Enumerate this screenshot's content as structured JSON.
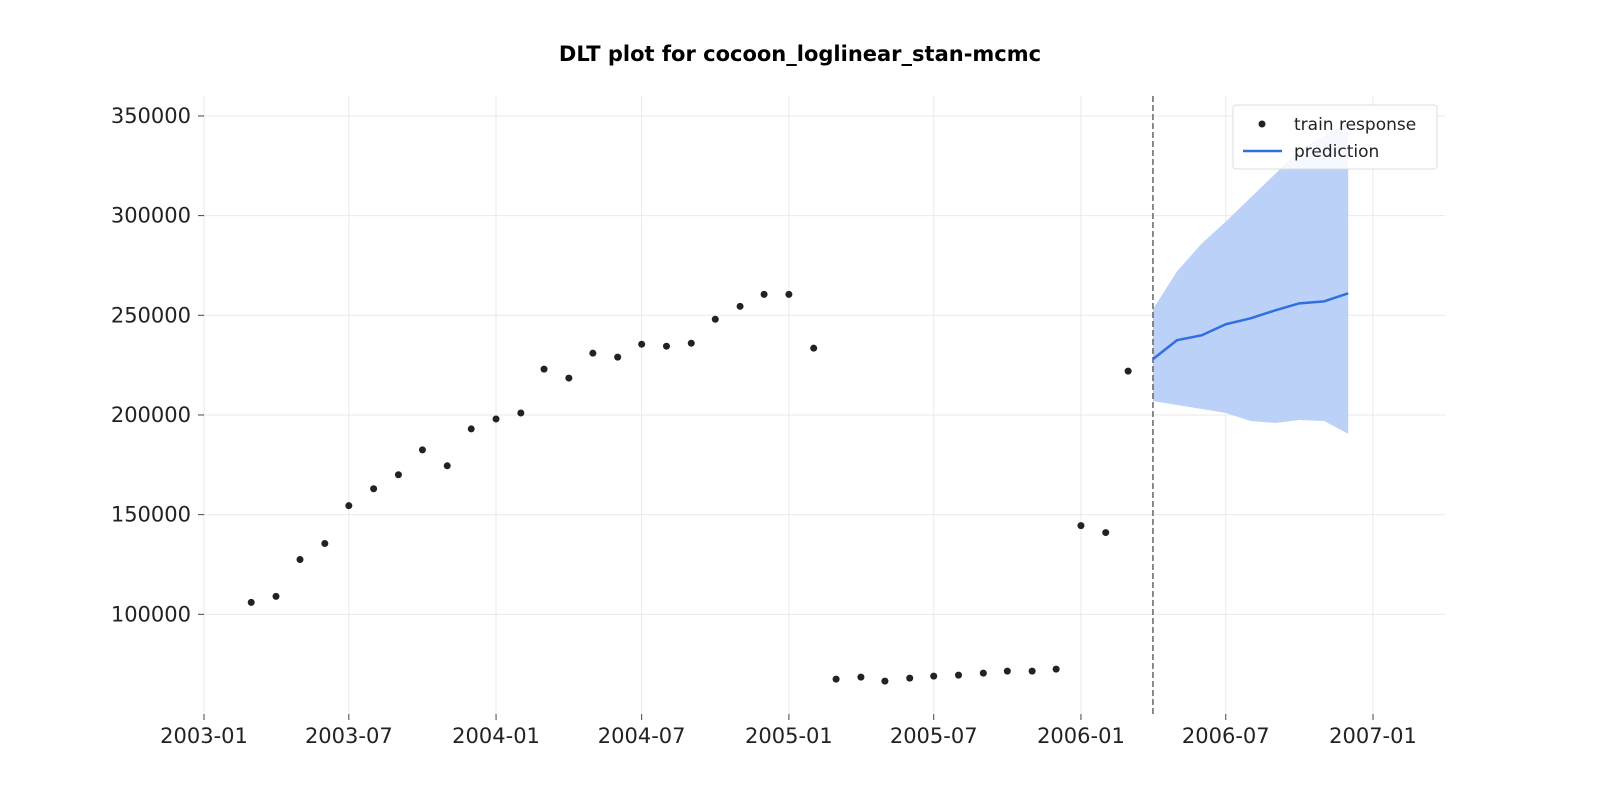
{
  "chart_data": {
    "type": "scatter",
    "title": "DLT plot for cocoon_loglinear_stan-mcmc",
    "xlabel": "",
    "ylabel": "",
    "xlim": [
      "2003-01-01",
      "2007-04-01"
    ],
    "ylim": [
      50000,
      360000
    ],
    "x_ticks": [
      "2003-01",
      "2003-07",
      "2004-01",
      "2004-07",
      "2005-01",
      "2005-07",
      "2006-01",
      "2006-07",
      "2007-01"
    ],
    "y_ticks": [
      100000,
      150000,
      200000,
      250000,
      300000,
      350000
    ],
    "grid": true,
    "legend_position": "top-right",
    "train_end_marker": "2006-04-01",
    "colors": {
      "train": "#222222",
      "prediction": "#2f6fe0",
      "interval": "#bcd1f7",
      "marker_line": "#666666",
      "grid": "#e9e9e9"
    },
    "series": [
      {
        "name": "train response",
        "kind": "scatter",
        "points": [
          [
            "2003-03-01",
            106000
          ],
          [
            "2003-04-01",
            109000
          ],
          [
            "2003-05-01",
            127500
          ],
          [
            "2003-06-01",
            135500
          ],
          [
            "2003-07-01",
            154500
          ],
          [
            "2003-08-01",
            163000
          ],
          [
            "2003-09-01",
            170000
          ],
          [
            "2003-10-01",
            182500
          ],
          [
            "2003-11-01",
            174500
          ],
          [
            "2003-12-01",
            193000
          ],
          [
            "2004-01-01",
            198000
          ],
          [
            "2004-02-01",
            201000
          ],
          [
            "2004-03-01",
            223000
          ],
          [
            "2004-04-01",
            218500
          ],
          [
            "2004-05-01",
            231000
          ],
          [
            "2004-06-01",
            229000
          ],
          [
            "2004-07-01",
            235500
          ],
          [
            "2004-08-01",
            234500
          ],
          [
            "2004-09-01",
            236000
          ],
          [
            "2004-10-01",
            248000
          ],
          [
            "2004-11-01",
            254500
          ],
          [
            "2004-12-01",
            260500
          ],
          [
            "2005-01-01",
            260500
          ],
          [
            "2005-02-01",
            233500
          ],
          [
            "2005-03-01",
            67500
          ],
          [
            "2005-04-01",
            68500
          ],
          [
            "2005-05-01",
            66500
          ],
          [
            "2005-06-01",
            68000
          ],
          [
            "2005-07-01",
            69000
          ],
          [
            "2005-08-01",
            69500
          ],
          [
            "2005-09-01",
            70500
          ],
          [
            "2005-10-01",
            71500
          ],
          [
            "2005-11-01",
            71500
          ],
          [
            "2005-12-01",
            72500
          ],
          [
            "2006-01-01",
            144500
          ],
          [
            "2006-02-01",
            141000
          ],
          [
            "2006-03-01",
            222000
          ]
        ]
      },
      {
        "name": "prediction",
        "kind": "line",
        "points": [
          [
            "2006-04-01",
            228000
          ],
          [
            "2006-05-01",
            237500
          ],
          [
            "2006-06-01",
            240000
          ],
          [
            "2006-07-01",
            245500
          ],
          [
            "2006-08-01",
            248500
          ],
          [
            "2006-09-01",
            252500
          ],
          [
            "2006-10-01",
            256000
          ],
          [
            "2006-11-01",
            257000
          ],
          [
            "2006-12-01",
            261000
          ]
        ],
        "lower": [
          207000,
          205000,
          203000,
          201000,
          197000,
          196000,
          197500,
          197000,
          190500
        ],
        "upper": [
          253000,
          272000,
          286000,
          297000,
          309000,
          321000,
          333000,
          340000,
          347000
        ]
      }
    ]
  }
}
